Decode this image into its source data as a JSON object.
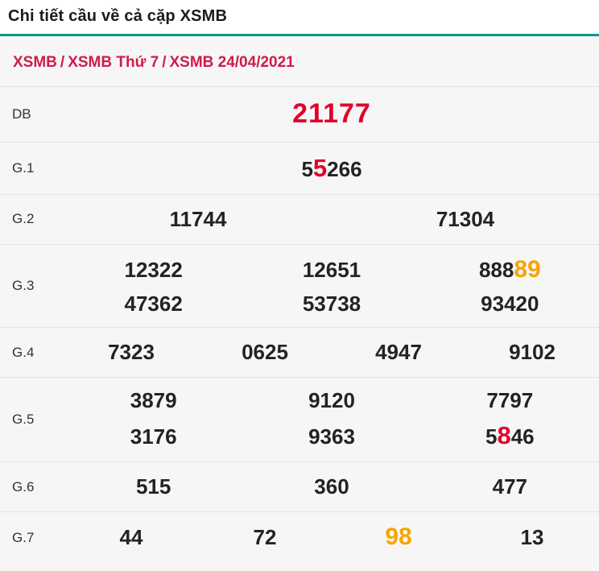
{
  "page": {
    "title": "Chi tiết cầu về cả cặp XSMB"
  },
  "breadcrumb": {
    "separator": "/",
    "items": [
      "XSMB",
      "XSMB Thứ 7",
      "XSMB 24/04/2021"
    ]
  },
  "colors": {
    "accent": "#00988c",
    "link": "#d01b4c",
    "number": "#232323",
    "highlight_red": "#e20029",
    "highlight_orange": "#f7a400"
  },
  "table": {
    "rows": [
      {
        "label": "DB",
        "lines": [
          [
            [
              {
                "t": "21177",
                "s": "db"
              }
            ]
          ]
        ]
      },
      {
        "label": "G.1",
        "lines": [
          [
            [
              {
                "t": "5"
              },
              {
                "t": "5",
                "s": "red"
              },
              {
                "t": "266"
              }
            ]
          ]
        ]
      },
      {
        "label": "G.2",
        "lines": [
          [
            [
              {
                "t": "11744"
              }
            ],
            [
              {
                "t": "71304"
              }
            ]
          ]
        ]
      },
      {
        "label": "G.3",
        "lines": [
          [
            [
              {
                "t": "12322"
              }
            ],
            [
              {
                "t": "12651"
              }
            ],
            [
              {
                "t": "888"
              },
              {
                "t": "89",
                "s": "orange"
              }
            ]
          ],
          [
            [
              {
                "t": "47362"
              }
            ],
            [
              {
                "t": "53738"
              }
            ],
            [
              {
                "t": "93420"
              }
            ]
          ]
        ]
      },
      {
        "label": "G.4",
        "lines": [
          [
            [
              {
                "t": "7323"
              }
            ],
            [
              {
                "t": "0625"
              }
            ],
            [
              {
                "t": "4947"
              }
            ],
            [
              {
                "t": "9102"
              }
            ]
          ]
        ]
      },
      {
        "label": "G.5",
        "lines": [
          [
            [
              {
                "t": "3879"
              }
            ],
            [
              {
                "t": "9120"
              }
            ],
            [
              {
                "t": "7797"
              }
            ]
          ],
          [
            [
              {
                "t": "3176"
              }
            ],
            [
              {
                "t": "9363"
              }
            ],
            [
              {
                "t": "5"
              },
              {
                "t": "8",
                "s": "red"
              },
              {
                "t": "46"
              }
            ]
          ]
        ]
      },
      {
        "label": "G.6",
        "lines": [
          [
            [
              {
                "t": "515"
              }
            ],
            [
              {
                "t": "360"
              }
            ],
            [
              {
                "t": "477"
              }
            ]
          ]
        ]
      },
      {
        "label": "G.7",
        "lines": [
          [
            [
              {
                "t": "44"
              }
            ],
            [
              {
                "t": "72"
              }
            ],
            [
              {
                "t": "98",
                "s": "orange"
              }
            ],
            [
              {
                "t": "13"
              }
            ]
          ]
        ]
      }
    ]
  }
}
